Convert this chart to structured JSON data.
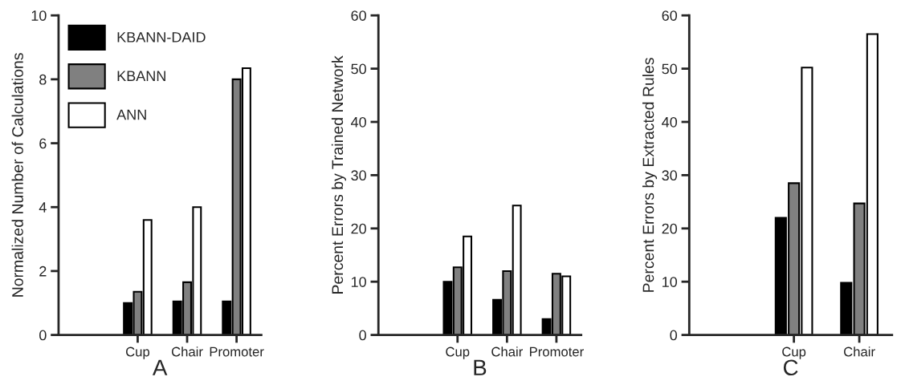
{
  "chart_data": [
    {
      "type": "bar",
      "xlabel": "A",
      "ylabel": "Normalized Number of Calculations",
      "categories": [
        "Cup",
        "Chair",
        "Promoter"
      ],
      "ylim": [
        0,
        10
      ],
      "yticks": [
        0,
        2,
        4,
        6,
        8,
        10
      ],
      "legend": "top left",
      "grid": false,
      "series": [
        {
          "name": "KBANN-DAID",
          "color": "#000000",
          "values": [
            1.0,
            1.05,
            1.05
          ]
        },
        {
          "name": "KBANN",
          "color": "#808080",
          "values": [
            1.35,
            1.65,
            8.0
          ]
        },
        {
          "name": "ANN",
          "color": "#ffffff",
          "values": [
            3.6,
            4.0,
            8.35
          ]
        }
      ]
    },
    {
      "type": "bar",
      "xlabel": "B",
      "ylabel": "Percent Errors by Trained Network",
      "categories": [
        "Cup",
        "Chair",
        "Promoter"
      ],
      "ylim": [
        0,
        60
      ],
      "yticks": [
        0,
        10,
        20,
        30,
        40,
        50,
        60
      ],
      "grid": false,
      "series": [
        {
          "color": "#000000",
          "values": [
            10,
            6.6,
            3
          ]
        },
        {
          "color": "#808080",
          "values": [
            12.7,
            12,
            11.5
          ]
        },
        {
          "color": "#ffffff",
          "values": [
            18.5,
            24.3,
            11
          ]
        }
      ]
    },
    {
      "type": "bar",
      "xlabel": "C",
      "ylabel": "Percent Errors by Extracted Rules",
      "categories": [
        "Cup",
        "Chair"
      ],
      "ylim": [
        0,
        60
      ],
      "yticks": [
        0,
        10,
        20,
        30,
        40,
        50,
        60
      ],
      "grid": false,
      "series": [
        {
          "color": "#000000",
          "values": [
            22,
            9.8
          ]
        },
        {
          "color": "#808080",
          "values": [
            28.5,
            24.7
          ]
        },
        {
          "color": "#ffffff",
          "values": [
            50.2,
            56.5
          ]
        }
      ]
    }
  ]
}
